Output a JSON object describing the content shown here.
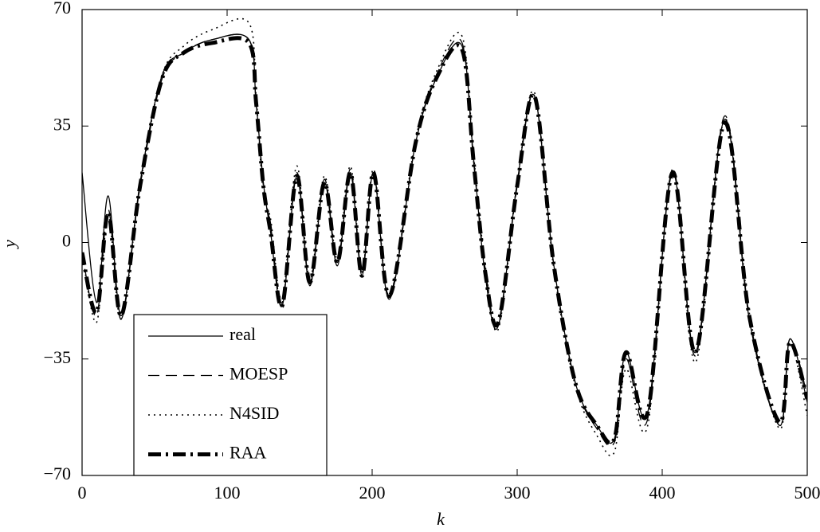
{
  "chart_data": {
    "type": "line",
    "xlabel": "k",
    "ylabel": "y",
    "xlim": [
      0,
      500
    ],
    "xticks": [
      0,
      100,
      200,
      300,
      400,
      500
    ],
    "ylim": [
      -70,
      70
    ],
    "yticks": [
      {
        "value": -70,
        "label": "−70"
      },
      {
        "value": -35,
        "label": "−35"
      },
      0,
      35,
      70
    ],
    "legend": "lower left",
    "x": [
      0,
      10,
      18,
      27,
      40,
      55,
      70,
      90,
      115,
      120,
      125,
      130,
      138,
      148,
      157,
      167,
      176,
      185,
      193,
      201,
      212,
      230,
      245,
      262,
      270,
      278,
      287,
      300,
      312,
      325,
      340,
      355,
      367,
      375,
      390,
      407,
      423,
      443,
      460,
      481,
      488,
      500
    ],
    "series": [
      {
        "name": "real",
        "color": "#000000",
        "dash": "solid",
        "width": 1.3,
        "values": [
          21,
          -18,
          14,
          -22,
          18,
          50,
          57,
          61,
          61,
          42,
          18,
          3,
          -19,
          20,
          -13,
          18,
          -7,
          21,
          -10,
          21,
          -17,
          30,
          50,
          59,
          25,
          -10,
          -25,
          18,
          44,
          -6,
          -42,
          -55,
          -59,
          -33,
          -51,
          21,
          -33,
          37,
          -23,
          -55,
          -29,
          -48
        ]
      },
      {
        "name": "MOESP",
        "color": "#000000",
        "dash": "dashed",
        "width": 1.3,
        "values": [
          -3,
          -22,
          10,
          -23,
          17,
          49,
          57,
          61,
          61,
          42,
          17,
          5,
          -18,
          21,
          -12,
          19,
          -6,
          22,
          -9,
          21,
          -16,
          30,
          51,
          60,
          24,
          -8,
          -24,
          17,
          44,
          -6,
          -42,
          -56,
          -60,
          -35,
          -53,
          22,
          -34,
          38,
          -22,
          -55,
          -29,
          -46
        ]
      },
      {
        "name": "N4SID",
        "color": "#000000",
        "dash": "dotted",
        "width": 1.6,
        "values": [
          -3,
          -24,
          8,
          -23,
          17,
          50,
          59,
          64,
          66,
          44,
          14,
          7,
          -17,
          23,
          -11,
          20,
          -5,
          23,
          -9,
          22,
          -16,
          31,
          52,
          62,
          26,
          -7,
          -26,
          18,
          45,
          -7,
          -43,
          -58,
          -63,
          -38,
          -55,
          22,
          -36,
          37,
          -21,
          -56,
          -30,
          -52
        ]
      },
      {
        "name": "RAA",
        "color": "#000000",
        "dash": "dashdot",
        "width": 5,
        "values": [
          -3,
          -21,
          9,
          -22,
          17,
          49,
          57,
          60,
          60,
          42,
          17,
          3,
          -19,
          20,
          -12,
          18,
          -6,
          21,
          -10,
          21,
          -16,
          30,
          50,
          58,
          24,
          -9,
          -24,
          17,
          44,
          -6,
          -42,
          -55,
          -59,
          -33,
          -51,
          21,
          -33,
          36,
          -22,
          -54,
          -30,
          -47
        ]
      }
    ]
  }
}
